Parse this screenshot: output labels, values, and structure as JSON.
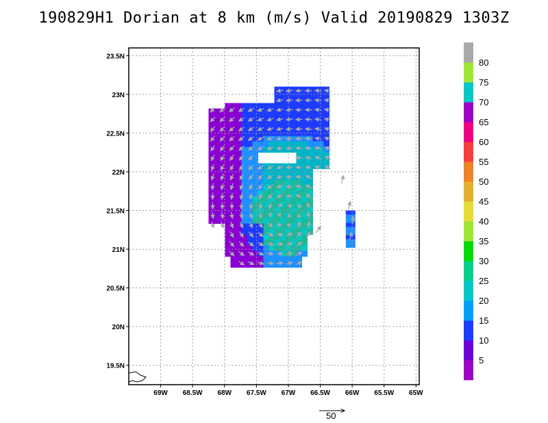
{
  "title": "190829H1 Dorian at 8 km (m/s) Valid 20190829 1303Z",
  "map": {
    "lon_range": [
      -69.5,
      -64.95
    ],
    "lat_range": [
      19.25,
      23.6
    ],
    "lon_ticks": [
      {
        "value": -69.0,
        "label": "69W"
      },
      {
        "value": -68.5,
        "label": "68.5W"
      },
      {
        "value": -68.0,
        "label": "68W"
      },
      {
        "value": -67.5,
        "label": "67.5W"
      },
      {
        "value": -67.0,
        "label": "67W"
      },
      {
        "value": -66.5,
        "label": "66.5W"
      },
      {
        "value": -66.0,
        "label": "66W"
      },
      {
        "value": -65.5,
        "label": "65.5W"
      },
      {
        "value": -65.0,
        "label": "65W"
      }
    ],
    "lat_ticks": [
      {
        "value": 19.5,
        "label": "19.5N"
      },
      {
        "value": 20.0,
        "label": "20N"
      },
      {
        "value": 20.5,
        "label": "20.5N"
      },
      {
        "value": 21.0,
        "label": "21N"
      },
      {
        "value": 21.5,
        "label": "21.5N"
      },
      {
        "value": 22.0,
        "label": "22N"
      },
      {
        "value": 22.5,
        "label": "22.5N"
      },
      {
        "value": 23.0,
        "label": "23N"
      },
      {
        "value": 23.5,
        "label": "23.5N"
      }
    ],
    "grid": "dotted",
    "storm_center": {
      "lon": -67.05,
      "lat": 21.45
    },
    "wind_field_extent": {
      "lon_min": -68.25,
      "lon_max": -66.35,
      "lat_min": 20.65,
      "lat_max": 23.1
    },
    "outer_band_extent": {
      "lon_min": -66.1,
      "lon_max": -65.95,
      "lat_min": 21.05,
      "lat_max": 21.5
    }
  },
  "colorbar": {
    "labels": [
      "5",
      "10",
      "15",
      "20",
      "25",
      "30",
      "35",
      "40",
      "45",
      "50",
      "55",
      "60",
      "65",
      "70",
      "75",
      "80"
    ],
    "colors": [
      "#a000c8",
      "#6e00dc",
      "#1e3cff",
      "#00a0ff",
      "#00c8c8",
      "#00d28c",
      "#00dc00",
      "#a0e632",
      "#e6dc32",
      "#e6af2d",
      "#f08228",
      "#fa3c3c",
      "#f00082",
      "#a000c8",
      "#00c8c8",
      "#a0e632",
      "#aaaaaa"
    ]
  },
  "reference_vector": {
    "value": "50",
    "unit": "m/s"
  }
}
